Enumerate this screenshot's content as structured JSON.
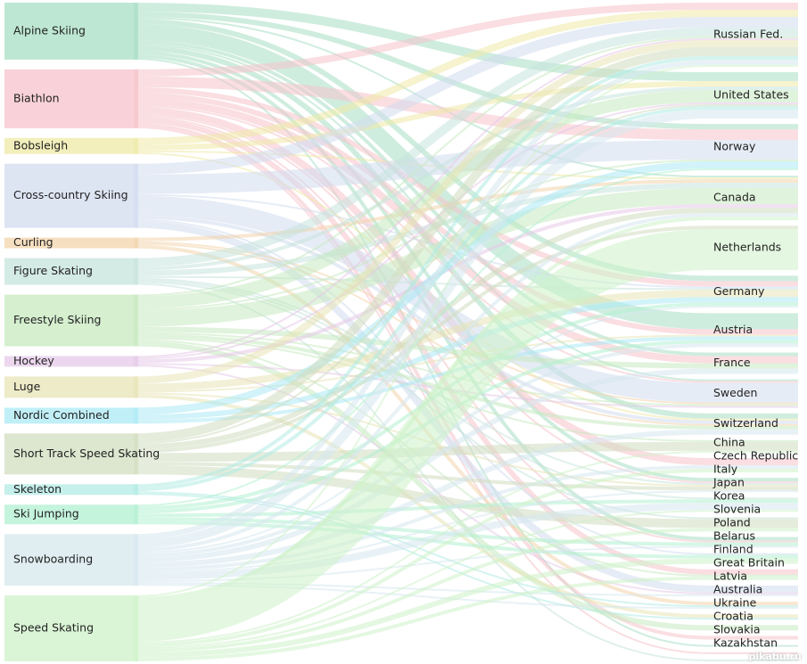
{
  "chart_data": {
    "type": "sankey",
    "title": "",
    "sources": [
      {
        "name": "Alpine Skiing",
        "color": "#a8dfc4"
      },
      {
        "name": "Biathlon",
        "color": "#f6c3cb"
      },
      {
        "name": "Bobsleigh",
        "color": "#eeeaa6"
      },
      {
        "name": "Cross-country Skiing",
        "color": "#d2dcef"
      },
      {
        "name": "Curling",
        "color": "#f3d4ab"
      },
      {
        "name": "Figure Skating",
        "color": "#c6e4dc"
      },
      {
        "name": "Freestyle Skiing",
        "color": "#c7eabf"
      },
      {
        "name": "Hockey",
        "color": "#e6c9e8"
      },
      {
        "name": "Luge",
        "color": "#e7e4b5"
      },
      {
        "name": "Nordic Combined",
        "color": "#ace9f4"
      },
      {
        "name": "Short Track Speed Skating",
        "color": "#d2ddbf"
      },
      {
        "name": "Skeleton",
        "color": "#b1ebe4"
      },
      {
        "name": "Ski Jumping",
        "color": "#b2f0d2"
      },
      {
        "name": "Snowboarding",
        "color": "#d6e8ee"
      },
      {
        "name": "Speed Skating",
        "color": "#cdf2c8"
      }
    ],
    "targets": [
      "Russian Fed.",
      "United States",
      "Norway",
      "Canada",
      "Netherlands",
      "Germany",
      "Austria",
      "France",
      "Sweden",
      "Switzerland",
      "China",
      "Czech Republic",
      "Italy",
      "Japan",
      "Korea",
      "Slovenia",
      "Poland",
      "Belarus",
      "Finland",
      "Great Britain",
      "Latvia",
      "Australia",
      "Ukraine",
      "Croatia",
      "Slovakia",
      "Kazakhstan"
    ],
    "flows": [
      [
        "Alpine Skiing",
        "Austria",
        9
      ],
      [
        "Alpine Skiing",
        "United States",
        5
      ],
      [
        "Alpine Skiing",
        "Germany",
        3
      ],
      [
        "Alpine Skiing",
        "Norway",
        3
      ],
      [
        "Alpine Skiing",
        "Switzerland",
        3
      ],
      [
        "Alpine Skiing",
        "Slovenia",
        2
      ],
      [
        "Alpine Skiing",
        "Italy",
        2
      ],
      [
        "Alpine Skiing",
        "France",
        2
      ],
      [
        "Alpine Skiing",
        "Canada",
        1
      ],
      [
        "Alpine Skiing",
        "Croatia",
        1
      ],
      [
        "Alpine Skiing",
        "Sweden",
        1
      ],
      [
        "Biathlon",
        "Norway",
        6
      ],
      [
        "Biathlon",
        "Russian Fed.",
        4
      ],
      [
        "Biathlon",
        "France",
        4
      ],
      [
        "Biathlon",
        "Germany",
        3
      ],
      [
        "Biathlon",
        "Belarus",
        3
      ],
      [
        "Biathlon",
        "Czech Republic",
        4
      ],
      [
        "Biathlon",
        "Ukraine",
        2
      ],
      [
        "Biathlon",
        "Austria",
        3
      ],
      [
        "Biathlon",
        "Slovakia",
        1
      ],
      [
        "Biathlon",
        "Slovenia",
        1
      ],
      [
        "Biathlon",
        "Sweden",
        1
      ],
      [
        "Biathlon",
        "Italy",
        1
      ],
      [
        "Bobsleigh",
        "Russian Fed.",
        4
      ],
      [
        "Bobsleigh",
        "United States",
        3
      ],
      [
        "Bobsleigh",
        "Switzerland",
        1
      ],
      [
        "Bobsleigh",
        "Canada",
        1
      ],
      [
        "Cross-country Skiing",
        "Norway",
        11
      ],
      [
        "Cross-country Skiing",
        "Sweden",
        11
      ],
      [
        "Cross-country Skiing",
        "Russian Fed.",
        6
      ],
      [
        "Cross-country Skiing",
        "Finland",
        4
      ],
      [
        "Cross-country Skiing",
        "Switzerland",
        2
      ],
      [
        "Cross-country Skiing",
        "Poland",
        1
      ],
      [
        "Cross-country Skiing",
        "Germany",
        1
      ],
      [
        "Curling",
        "Canada",
        2
      ],
      [
        "Curling",
        "Great Britain",
        2
      ],
      [
        "Curling",
        "Sweden",
        1
      ],
      [
        "Curling",
        "Switzerland",
        1
      ],
      [
        "Figure Skating",
        "Russian Fed.",
        5
      ],
      [
        "Figure Skating",
        "Canada",
        3
      ],
      [
        "Figure Skating",
        "United States",
        2
      ],
      [
        "Figure Skating",
        "Japan",
        1
      ],
      [
        "Figure Skating",
        "Italy",
        1
      ],
      [
        "Figure Skating",
        "Kazakhstan",
        1
      ],
      [
        "Figure Skating",
        "Korea",
        1
      ],
      [
        "Figure Skating",
        "Germany",
        1
      ],
      [
        "Freestyle Skiing",
        "Canada",
        9
      ],
      [
        "Freestyle Skiing",
        "United States",
        7
      ],
      [
        "Freestyle Skiing",
        "France",
        3
      ],
      [
        "Freestyle Skiing",
        "Switzerland",
        2
      ],
      [
        "Freestyle Skiing",
        "Norway",
        1
      ],
      [
        "Freestyle Skiing",
        "Australia",
        3
      ],
      [
        "Freestyle Skiing",
        "Russian Fed.",
        1
      ],
      [
        "Freestyle Skiing",
        "Belarus",
        1
      ],
      [
        "Freestyle Skiing",
        "China",
        1
      ],
      [
        "Freestyle Skiing",
        "Sweden",
        1
      ],
      [
        "Hockey",
        "Canada",
        2
      ],
      [
        "Hockey",
        "Sweden",
        1
      ],
      [
        "Hockey",
        "Finland",
        1
      ],
      [
        "Hockey",
        "United States",
        1
      ],
      [
        "Hockey",
        "Russian Fed.",
        1
      ],
      [
        "Luge",
        "Germany",
        4
      ],
      [
        "Luge",
        "Russian Fed.",
        4
      ],
      [
        "Luge",
        "Italy",
        1
      ],
      [
        "Luge",
        "Austria",
        1
      ],
      [
        "Luge",
        "Latvia",
        2
      ],
      [
        "Nordic Combined",
        "Germany",
        3
      ],
      [
        "Nordic Combined",
        "Norway",
        4
      ],
      [
        "Nordic Combined",
        "Austria",
        2
      ],
      [
        "Short Track Speed Skating",
        "China",
        5
      ],
      [
        "Short Track Speed Skating",
        "Korea",
        5
      ],
      [
        "Short Track Speed Skating",
        "Russian Fed.",
        5
      ],
      [
        "Short Track Speed Skating",
        "Netherlands",
        2
      ],
      [
        "Short Track Speed Skating",
        "Canada",
        3
      ],
      [
        "Short Track Speed Skating",
        "Italy",
        2
      ],
      [
        "Short Track Speed Skating",
        "United States",
        1
      ],
      [
        "Skeleton",
        "Russian Fed.",
        2
      ],
      [
        "Skeleton",
        "United States",
        2
      ],
      [
        "Skeleton",
        "Latvia",
        1
      ],
      [
        "Skeleton",
        "Great Britain",
        1
      ],
      [
        "Ski Jumping",
        "Germany",
        2
      ],
      [
        "Ski Jumping",
        "Poland",
        2
      ],
      [
        "Ski Jumping",
        "Slovenia",
        2
      ],
      [
        "Ski Jumping",
        "Norway",
        1
      ],
      [
        "Ski Jumping",
        "Austria",
        2
      ],
      [
        "Ski Jumping",
        "Japan",
        2
      ],
      [
        "Snowboarding",
        "United States",
        5
      ],
      [
        "Snowboarding",
        "Switzerland",
        3
      ],
      [
        "Snowboarding",
        "Russian Fed.",
        3
      ],
      [
        "Snowboarding",
        "Canada",
        2
      ],
      [
        "Snowboarding",
        "Japan",
        4
      ],
      [
        "Snowboarding",
        "Czech Republic",
        2
      ],
      [
        "Snowboarding",
        "Austria",
        2
      ],
      [
        "Snowboarding",
        "France",
        3
      ],
      [
        "Snowboarding",
        "Slovenia",
        1
      ],
      [
        "Snowboarding",
        "Germany",
        1
      ],
      [
        "Snowboarding",
        "Great Britain",
        1
      ],
      [
        "Snowboarding",
        "Finland",
        1
      ],
      [
        "Snowboarding",
        "Italy",
        1
      ],
      [
        "Speed Skating",
        "Netherlands",
        23
      ],
      [
        "Speed Skating",
        "Poland",
        3
      ],
      [
        "Speed Skating",
        "Korea",
        2
      ],
      [
        "Speed Skating",
        "Czech Republic",
        2
      ],
      [
        "Speed Skating",
        "Canada",
        2
      ],
      [
        "Speed Skating",
        "China",
        1
      ],
      [
        "Speed Skating",
        "Russian Fed.",
        1
      ],
      [
        "Speed Skating",
        "Japan",
        1
      ],
      [
        "Speed Skating",
        "Belarus",
        2
      ]
    ]
  },
  "watermark": "pikabu.ru"
}
